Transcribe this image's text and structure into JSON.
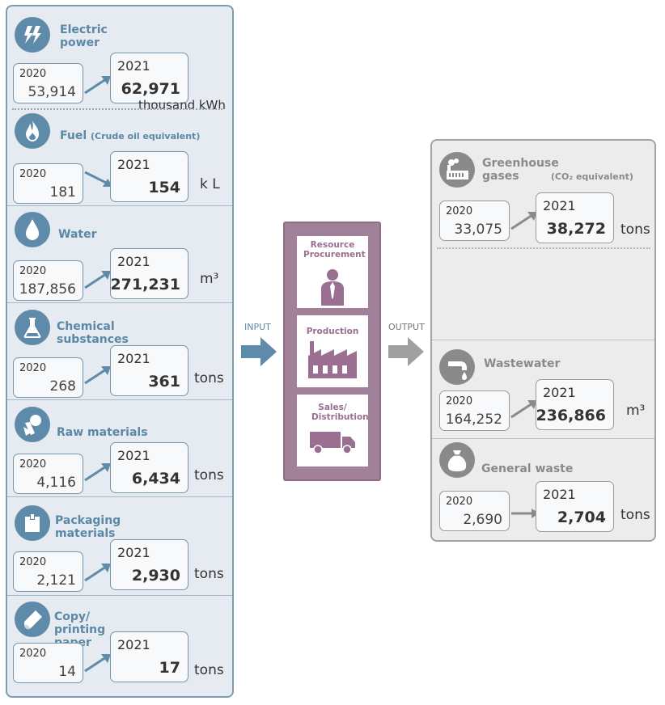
{
  "inputs": [
    {
      "title": "Electric power",
      "note": "",
      "y2020": "2020",
      "v2020": "53,914",
      "y2021": "2021",
      "v2021": "62,971",
      "unit": "thousand kWh",
      "icon": "lightning-icon"
    },
    {
      "title": "Fuel",
      "note": "(Crude oil equivalent)",
      "y2020": "2020",
      "v2020": "181",
      "y2021": "2021",
      "v2021": "154",
      "unit": "k L",
      "icon": "flame-icon"
    },
    {
      "title": "Water",
      "note": "",
      "y2020": "2020",
      "v2020": "187,856",
      "y2021": "2021",
      "v2021": "271,231",
      "unit": "m³",
      "icon": "water-drop-icon"
    },
    {
      "title": "Chemical substances",
      "note": "",
      "y2020": "2020",
      "v2020": "268",
      "y2021": "2021",
      "v2021": "361",
      "unit": "tons",
      "icon": "flask-icon"
    },
    {
      "title": "Raw materials",
      "note": "",
      "y2020": "2020",
      "v2020": "4,116",
      "y2021": "2021",
      "v2021": "6,434",
      "unit": "tons",
      "icon": "raw-materials-icon"
    },
    {
      "title": "Packaging materials",
      "note": "",
      "y2020": "2020",
      "v2020": "2,121",
      "y2021": "2021",
      "v2021": "2,930",
      "unit": "tons",
      "icon": "package-icon"
    },
    {
      "title": "Copy/ printing paper",
      "note": "",
      "y2020": "2020",
      "v2020": "14",
      "y2021": "2021",
      "v2021": "17",
      "unit": "tons",
      "icon": "paper-icon"
    }
  ],
  "flow": {
    "input_label": "INPUT",
    "output_label": "OUTPUT"
  },
  "process": [
    {
      "label": "Resource Procurement",
      "icon": "person-icon"
    },
    {
      "label": "Production",
      "icon": "factory-icon"
    },
    {
      "label": "Sales/ Distribution",
      "icon": "truck-icon"
    }
  ],
  "outputs": [
    {
      "title": "Greenhouse gases",
      "note": "(CO₂ equivalent)",
      "y2020": "2020",
      "v2020": "33,075",
      "y2021": "2021",
      "v2021": "38,272",
      "unit": "tons",
      "icon": "factory-smoke-icon"
    },
    {
      "title": "Wastewater",
      "note": "",
      "y2020": "2020",
      "v2020": "164,252",
      "y2021": "2021",
      "v2021": "236,866",
      "unit": "m³",
      "icon": "faucet-icon"
    },
    {
      "title": "General waste",
      "note": "",
      "y2020": "2020",
      "v2020": "2,690",
      "y2021": "2021",
      "v2021": "2,704",
      "unit": "tons",
      "icon": "garbage-bag-icon"
    }
  ],
  "colors": {
    "input_accent": "#5d8ba9",
    "output_accent": "#8a8a8a",
    "process_accent": "#a08199"
  }
}
